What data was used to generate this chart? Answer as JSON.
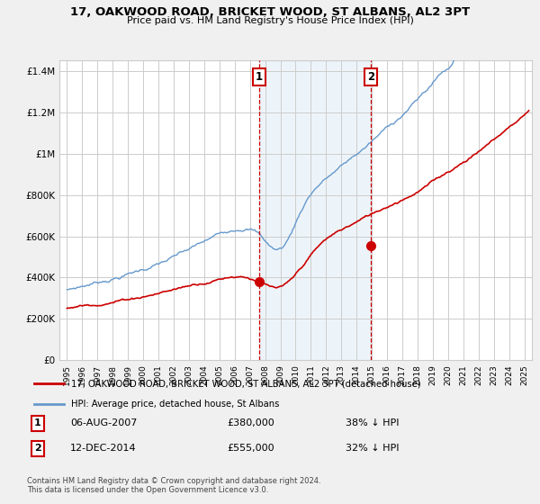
{
  "title": "17, OAKWOOD ROAD, BRICKET WOOD, ST ALBANS, AL2 3PT",
  "subtitle": "Price paid vs. HM Land Registry's House Price Index (HPI)",
  "legend_line1": "17, OAKWOOD ROAD, BRICKET WOOD, ST ALBANS, AL2 3PT (detached house)",
  "legend_line2": "HPI: Average price, detached house, St Albans",
  "footnote1": "Contains HM Land Registry data © Crown copyright and database right 2024.",
  "footnote2": "This data is licensed under the Open Government Licence v3.0.",
  "transaction1": {
    "label": "1",
    "date": "06-AUG-2007",
    "price": "£380,000",
    "pct": "38% ↓ HPI"
  },
  "transaction2": {
    "label": "2",
    "date": "12-DEC-2014",
    "price": "£555,000",
    "pct": "32% ↓ HPI"
  },
  "sale1_x": 2007.6,
  "sale1_y": 380000,
  "sale2_x": 2014.95,
  "sale2_y": 555000,
  "vline1_x": 2007.6,
  "vline2_x": 2014.95,
  "red_color": "#cc0000",
  "blue_color": "#6699cc",
  "shade_color": "#cce0f0",
  "background_color": "#f0f0f0",
  "plot_bg_color": "#ffffff",
  "grid_color": "#cccccc",
  "ylim": [
    0,
    1450000
  ],
  "xlim": [
    1994.5,
    2025.5
  ]
}
